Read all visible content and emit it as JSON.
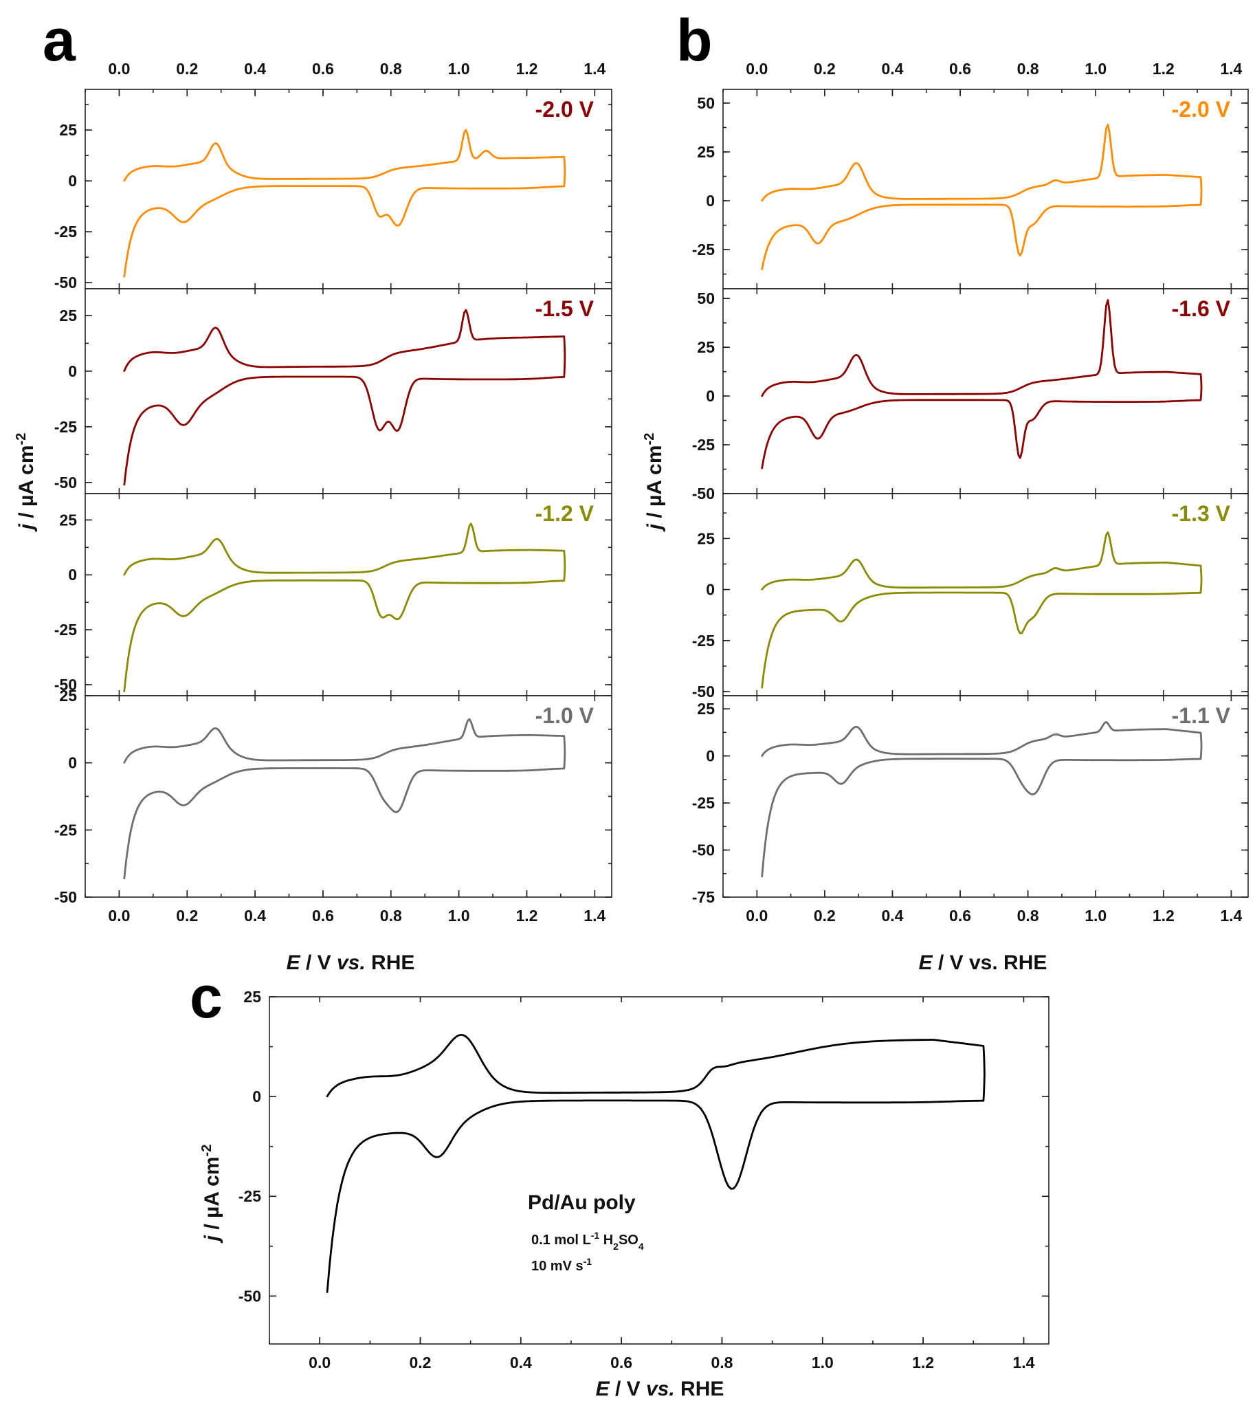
{
  "chart_data": [
    {
      "panel": "a",
      "type": "line",
      "xlabel": "E / V vs. RHE",
      "ylabel": "j / µA cm-2",
      "xlim": [
        -0.1,
        1.45
      ],
      "xticks": [
        "0.0",
        "0.2",
        "0.4",
        "0.6",
        "0.8",
        "1.0",
        "1.2",
        "1.4"
      ],
      "subplots": [
        {
          "label": "-2.0 V",
          "color": "#FF8C00",
          "ylim": [
            -53,
            45
          ],
          "yticks": [
            -50,
            -25,
            0,
            25
          ],
          "curve": {
            "E1": 0.015,
            "E2": 1.31,
            "jMin": -47,
            "jMax": 12,
            "capA": 6,
            "capC": -12.5,
            "dlA": 0.5,
            "dlC": -2.5,
            "hupd": {
              "c": 0.19,
              "w": 0.04,
              "h": -8
            },
            "hox": {
              "c": 0.285,
              "w": 0.025,
              "h": 10,
              "shoulder": 4
            },
            "ox": {
              "base": 5,
              "plat": 11,
              "peakE": 1.02,
              "peakH": 15,
              "shoulder2E": 1.08,
              "shoulder2H": 4
            },
            "red": [
              {
                "c": 0.765,
                "w": 0.025,
                "h": -13
              },
              {
                "c": 0.82,
                "w": 0.035,
                "h": -19
              }
            ]
          }
        },
        {
          "label": "-1.5 V",
          "color": "#8B0000",
          "ylim": [
            -55,
            37
          ],
          "yticks": [
            -50,
            -25,
            0,
            25
          ],
          "curve": {
            "E1": 0.015,
            "E2": 1.31,
            "jMin": -51,
            "jMax": 15,
            "capA": 7,
            "capC": -14.5,
            "dlA": 1,
            "dlC": -2.5,
            "hupd": {
              "c": 0.19,
              "w": 0.04,
              "h": -10
            },
            "hox": {
              "c": 0.285,
              "w": 0.028,
              "h": 10,
              "shoulder": 4
            },
            "ox": {
              "base": 6,
              "plat": 14,
              "peakE": 1.02,
              "peakH": 14,
              "shoulder2E": 1.08,
              "shoulder2H": 0
            },
            "red": [
              {
                "c": 0.765,
                "w": 0.03,
                "h": -23
              },
              {
                "c": 0.82,
                "w": 0.03,
                "h": -23
              }
            ]
          }
        },
        {
          "label": "-1.2 V",
          "color": "#8B8B00",
          "ylim": [
            -55,
            37
          ],
          "yticks": [
            -50,
            -25,
            0,
            25
          ],
          "curve": {
            "E1": 0.015,
            "E2": 1.31,
            "jMin": -53,
            "jMax": 10,
            "capA": 6,
            "capC": -12,
            "dlA": 0.5,
            "dlC": -2.5,
            "hupd": {
              "c": 0.19,
              "w": 0.04,
              "h": -7
            },
            "hox": {
              "c": 0.29,
              "w": 0.03,
              "h": 8,
              "shoulder": 4
            },
            "ox": {
              "base": 5,
              "plat": 11,
              "peakE": 1.035,
              "peakH": 13,
              "shoulder2E": 1.08,
              "shoulder2H": 0
            },
            "red": [
              {
                "c": 0.77,
                "w": 0.025,
                "h": -14
              },
              {
                "c": 0.82,
                "w": 0.035,
                "h": -17
              }
            ]
          }
        },
        {
          "label": "-1.0 V",
          "color": "#6E6E6E",
          "ylim": [
            -50,
            25
          ],
          "yticks": [
            -50,
            -25,
            0,
            25
          ],
          "curve": {
            "E1": 0.015,
            "E2": 1.31,
            "jMin": -43,
            "jMax": 9,
            "capA": 5,
            "capC": -10,
            "dlA": 0.5,
            "dlC": -2,
            "hupd": {
              "c": 0.19,
              "w": 0.04,
              "h": -6
            },
            "hox": {
              "c": 0.285,
              "w": 0.03,
              "h": 6,
              "shoulder": 3
            },
            "ox": {
              "base": 4,
              "plat": 10,
              "peakE": 1.03,
              "peakH": 7,
              "shoulder2E": 1.08,
              "shoulder2H": 0
            },
            "red": [
              {
                "c": 0.775,
                "w": 0.03,
                "h": -8
              },
              {
                "c": 0.82,
                "w": 0.035,
                "h": -15
              }
            ]
          }
        }
      ]
    },
    {
      "panel": "b",
      "type": "line",
      "xlabel": "E / V vs. RHE",
      "ylabel": "j / µA cm-2",
      "xlim": [
        -0.1,
        1.45
      ],
      "xticks": [
        "0.0",
        "0.2",
        "0.4",
        "0.6",
        "0.8",
        "1.0",
        "1.2",
        "1.4"
      ],
      "subplots": [
        {
          "label": "-2.0 V",
          "color": "#FF8C00",
          "ylim": [
            -45,
            57
          ],
          "yticks": [
            -25,
            0,
            25,
            50
          ],
          "curve": {
            "E1": 0.015,
            "E2": 1.31,
            "jMin": -35,
            "jMax": 10,
            "capA": 5,
            "capC": -12,
            "dlA": 0.5,
            "dlC": -2,
            "hupd": {
              "c": 0.18,
              "w": 0.03,
              "h": -10
            },
            "hox": {
              "c": 0.295,
              "w": 0.03,
              "h": 12,
              "shoulder": 4
            },
            "ox": {
              "base": 6,
              "plat": 13,
              "peakE": 1.035,
              "peakH": 27,
              "shoulder2E": 0.88,
              "shoulder2H": 2
            },
            "red": [
              {
                "c": 0.775,
                "w": 0.018,
                "h": -22
              },
              {
                "c": 0.81,
                "w": 0.035,
                "h": -10
              }
            ]
          }
        },
        {
          "label": "-1.6 V",
          "color": "#8B0000",
          "ylim": [
            -50,
            55
          ],
          "yticks": [
            -50,
            -25,
            0,
            25,
            50
          ],
          "curve": {
            "E1": 0.015,
            "E2": 1.31,
            "jMin": -37,
            "jMax": 9,
            "capA": 6,
            "capC": -10,
            "dlA": 0.5,
            "dlC": -2,
            "hupd": {
              "c": 0.18,
              "w": 0.03,
              "h": -12
            },
            "hox": {
              "c": 0.295,
              "w": 0.03,
              "h": 13,
              "shoulder": 4
            },
            "ox": {
              "base": 6,
              "plat": 12,
              "peakE": 1.035,
              "peakH": 38,
              "shoulder2E": 0.88,
              "shoulder2H": 0
            },
            "red": [
              {
                "c": 0.775,
                "w": 0.016,
                "h": -27
              },
              {
                "c": 0.81,
                "w": 0.03,
                "h": -10
              }
            ]
          }
        },
        {
          "label": "-1.3 V",
          "color": "#8B8B00",
          "ylim": [
            -52,
            47
          ],
          "yticks": [
            -50,
            -25,
            0,
            25
          ],
          "curve": {
            "E1": 0.015,
            "E2": 1.31,
            "jMin": -48,
            "jMax": 9,
            "capA": 4,
            "capC": -10,
            "dlA": 0.5,
            "dlC": -1.5,
            "hupd": {
              "c": 0.25,
              "w": 0.03,
              "h": -7
            },
            "hox": {
              "c": 0.295,
              "w": 0.03,
              "h": 9,
              "shoulder": 3
            },
            "ox": {
              "base": 6,
              "plat": 13,
              "peakE": 1.035,
              "peakH": 16,
              "shoulder2E": 0.88,
              "shoulder2H": 2
            },
            "red": [
              {
                "c": 0.775,
                "w": 0.02,
                "h": -15
              },
              {
                "c": 0.81,
                "w": 0.035,
                "h": -12
              }
            ]
          }
        },
        {
          "label": "-1.1 V",
          "color": "#6E6E6E",
          "ylim": [
            -75,
            32
          ],
          "yticks": [
            -75,
            -50,
            -25,
            0,
            25
          ],
          "curve": {
            "E1": 0.015,
            "E2": 1.31,
            "jMin": -64,
            "jMax": 9,
            "capA": 5,
            "capC": -9,
            "dlA": 0.5,
            "dlC": -1.5,
            "hupd": {
              "c": 0.25,
              "w": 0.03,
              "h": -7
            },
            "hox": {
              "c": 0.295,
              "w": 0.03,
              "h": 9,
              "shoulder": 3
            },
            "ox": {
              "base": 7,
              "plat": 14,
              "peakE": 1.03,
              "peakH": 5,
              "shoulder2E": 0.88,
              "shoulder2H": 2
            },
            "red": [
              {
                "c": 0.78,
                "w": 0.03,
                "h": -8
              },
              {
                "c": 0.82,
                "w": 0.035,
                "h": -17
              }
            ]
          }
        }
      ]
    },
    {
      "panel": "c",
      "type": "line",
      "xlabel": "E / V vs. RHE",
      "ylabel": "j / µA cm-2",
      "xlim": [
        -0.1,
        1.45
      ],
      "xticks": [
        "0.0",
        "0.2",
        "0.4",
        "0.6",
        "0.8",
        "1.0",
        "1.2",
        "1.4"
      ],
      "ylim": [
        -62,
        25
      ],
      "yticks": [
        -50,
        -25,
        0,
        25
      ],
      "annotation": {
        "title": "Pd/Au poly",
        "electrolyte": "0.1 mol L-1 H2SO4",
        "scan_rate": "10 mV s-1"
      },
      "subplots": [
        {
          "label": "",
          "color": "#000000",
          "ylim": [
            -62,
            25
          ],
          "yticks": [
            -50,
            -25,
            0,
            25
          ],
          "curve": {
            "E1": 0.015,
            "E2": 1.32,
            "jMin": -49,
            "jMax": 10,
            "capA": 4,
            "capC": -9,
            "dlA": 0.5,
            "dlC": -1,
            "hupd": {
              "c": 0.235,
              "w": 0.035,
              "h": -7
            },
            "hox": {
              "c": 0.285,
              "w": 0.04,
              "h": 7,
              "shoulder": 6
            },
            "ox": {
              "base": 7,
              "plat": 14,
              "peakE": 1.0,
              "peakH": 0,
              "shoulder2E": 0.78,
              "shoulder2H": 2
            },
            "red": [
              {
                "c": 0.82,
                "w": 0.04,
                "h": -22
              }
            ]
          }
        }
      ]
    }
  ],
  "labels": {
    "panel_a": "a",
    "panel_b": "b",
    "panel_c": "c",
    "xlabel_a": "E / V vs. RHE",
    "xlabel_b": "E / V vs. RHE",
    "xlabel_c": "E / V vs. RHE",
    "ylabel": "j / µA cm-2"
  }
}
